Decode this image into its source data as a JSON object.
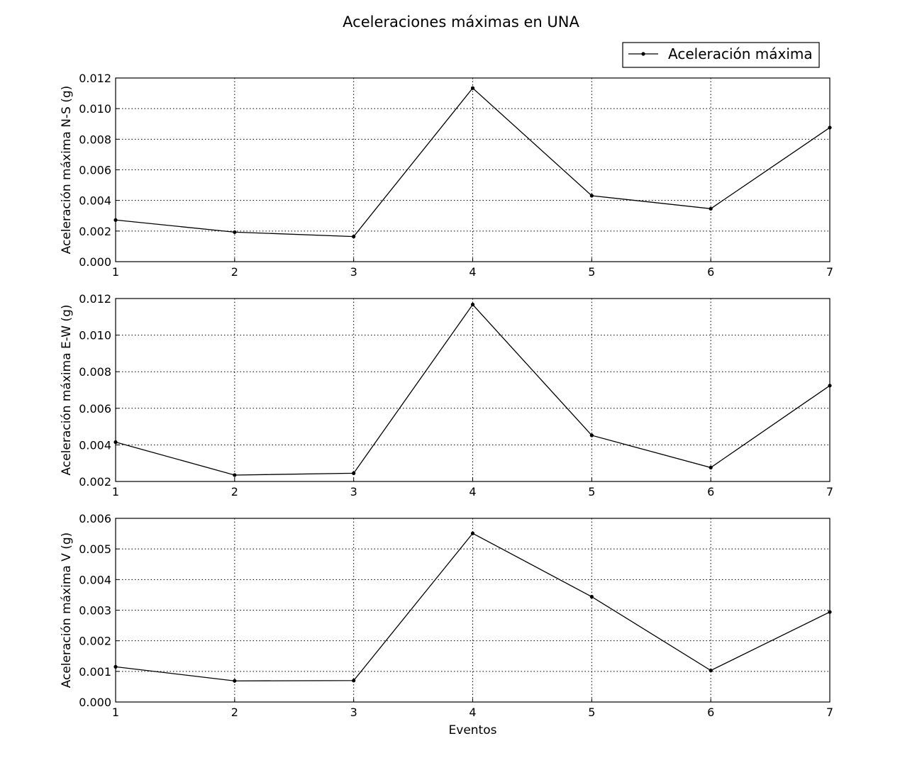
{
  "chart_data": [
    {
      "type": "line",
      "title": "Aceleraciones máximas en UNA",
      "legend": {
        "entries": [
          "Aceleración máxima"
        ],
        "placement": "top-right"
      },
      "xlabel": "",
      "ylabel": "Aceleración máxima N-S (g)",
      "x": [
        1,
        2,
        3,
        4,
        5,
        6,
        7
      ],
      "xlim": [
        1,
        7
      ],
      "xticks": [
        "1",
        "2",
        "3",
        "4",
        "5",
        "6",
        "7"
      ],
      "ylim": [
        0.0,
        0.012
      ],
      "yticks": [
        "0.000",
        "0.002",
        "0.004",
        "0.006",
        "0.008",
        "0.010",
        "0.012"
      ],
      "grid": true,
      "series": [
        {
          "name": "Aceleración máxima",
          "values": [
            0.00272,
            0.00193,
            0.00164,
            0.01134,
            0.00431,
            0.00346,
            0.00876
          ]
        }
      ]
    },
    {
      "type": "line",
      "xlabel": "",
      "ylabel": "Aceleración máxima E-W (g)",
      "x": [
        1,
        2,
        3,
        4,
        5,
        6,
        7
      ],
      "xlim": [
        1,
        7
      ],
      "xticks": [
        "1",
        "2",
        "3",
        "4",
        "5",
        "6",
        "7"
      ],
      "ylim": [
        0.002,
        0.012
      ],
      "yticks": [
        "0.002",
        "0.004",
        "0.006",
        "0.008",
        "0.010",
        "0.012"
      ],
      "grid": true,
      "series": [
        {
          "name": "Aceleración máxima",
          "values": [
            0.00415,
            0.00235,
            0.00245,
            0.01167,
            0.00452,
            0.00276,
            0.00724
          ]
        }
      ]
    },
    {
      "type": "line",
      "xlabel": "Eventos",
      "ylabel": "Aceleración máxima V (g)",
      "x": [
        1,
        2,
        3,
        4,
        5,
        6,
        7
      ],
      "xlim": [
        1,
        7
      ],
      "xticks": [
        "1",
        "2",
        "3",
        "4",
        "5",
        "6",
        "7"
      ],
      "ylim": [
        0.0,
        0.006
      ],
      "yticks": [
        "0.000",
        "0.001",
        "0.002",
        "0.003",
        "0.004",
        "0.005",
        "0.006"
      ],
      "grid": true,
      "series": [
        {
          "name": "Aceleración máxima",
          "values": [
            0.00115,
            0.00069,
            0.0007,
            0.00551,
            0.00344,
            0.00103,
            0.00294
          ]
        }
      ]
    }
  ]
}
